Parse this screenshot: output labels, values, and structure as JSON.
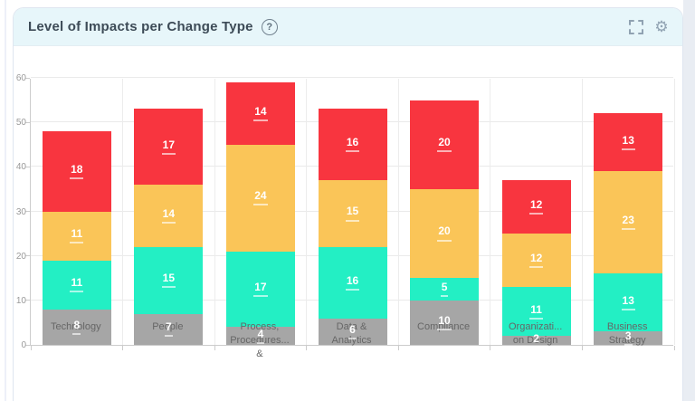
{
  "header": {
    "title": "Level of Impacts per Change Type",
    "help_label": "?"
  },
  "colors": {
    "header_bg": "#e7f6fa",
    "page_band": "#e9edf3",
    "icon": "#90a2b2"
  },
  "chart_data": {
    "type": "bar",
    "stacked": true,
    "title": "Level of Impacts per Change Type",
    "categories": [
      "Technology",
      "People",
      "Process, Procedures... &",
      "Data & Analytics",
      "Compliance",
      "Organizati... on Design",
      "Business Strategy"
    ],
    "category_label_lines": [
      [
        "Technology"
      ],
      [
        "People"
      ],
      [
        "Process,",
        "Procedures...",
        "&"
      ],
      [
        "Data &",
        "Analytics"
      ],
      [
        "Compliance"
      ],
      [
        "Organizati...",
        "on Design"
      ],
      [
        "Business",
        "Strategy"
      ]
    ],
    "series": [
      {
        "name": "segment-gray",
        "color": "#a6a6a6",
        "values": [
          8,
          7,
          4,
          6,
          10,
          2,
          3
        ]
      },
      {
        "name": "segment-teal",
        "color": "#23efc4",
        "values": [
          11,
          15,
          17,
          16,
          5,
          11,
          13
        ]
      },
      {
        "name": "segment-yellow",
        "color": "#fac558",
        "values": [
          11,
          14,
          24,
          15,
          20,
          12,
          23
        ]
      },
      {
        "name": "segment-red",
        "color": "#f8353f",
        "values": [
          18,
          17,
          14,
          16,
          20,
          12,
          13
        ]
      }
    ],
    "totals": [
      48,
      53,
      59,
      53,
      55,
      37,
      52
    ],
    "ylim": [
      0,
      60
    ],
    "yticks": [
      0,
      10,
      20,
      30,
      40,
      50,
      60
    ],
    "grid": true,
    "legend_position": "none",
    "value_labels": "white bold underlined, centered in each segment"
  }
}
